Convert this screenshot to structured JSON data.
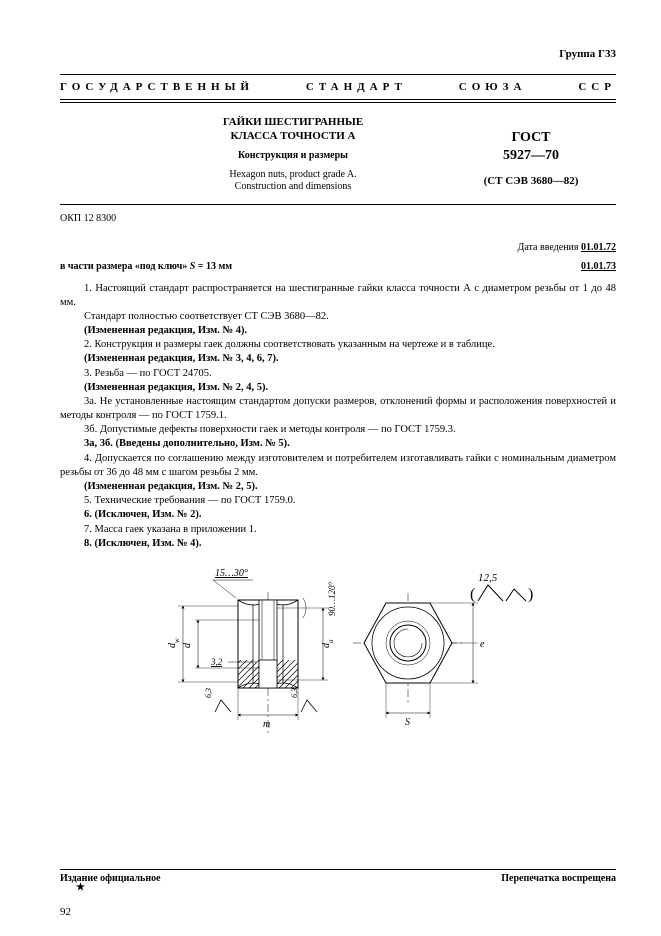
{
  "group": "Группа  Г33",
  "banner": {
    "w1": "ГОСУДАРСТВЕННЫЙ",
    "w2": "СТАНДАРТ",
    "w3": "СОЮЗА",
    "w4": "ССР"
  },
  "header": {
    "title1": "ГАЙКИ ШЕСТИГРАННЫЕ",
    "title2": "КЛАССА ТОЧНОСТИ А",
    "subtitle": "Конструкция и размеры",
    "eng1": "Hexagon nuts, product grade A.",
    "eng2": "Construction and dimensions",
    "gost1": "ГОСТ",
    "gost2": "5927—70",
    "stsev": "(СТ СЭВ 3680—82)"
  },
  "okp": "ОКП 12 8300",
  "intro_date_label": "Дата введения ",
  "intro_date": "01.01.72",
  "size_label_pre": "в части размера «под ключ» ",
  "size_var": "S",
  "size_label_post": " = 13 мм",
  "size_date": "01.01.73",
  "paragraphs": [
    {
      "text": "1. Настоящий стандарт распространяется на шестигранные гайки класса точности А с диаметром резьбы от 1 до 48 мм."
    },
    {
      "text": "Стандарт полностью соответствует СТ СЭВ 3680—82."
    },
    {
      "text": "(Измененная редакция, Изм. № 4).",
      "bold": true
    },
    {
      "text": "2. Конструкция и размеры гаек должны соответствовать указанным на чертеже и в таблице."
    },
    {
      "text": "(Измененная редакция, Изм. № 3, 4, 6, 7).",
      "bold": true
    },
    {
      "text": "3. Резьба — по ГОСТ 24705."
    },
    {
      "text": "(Измененная редакция, Изм. № 2, 4, 5).",
      "bold": true
    },
    {
      "text": "3а. Не установленные настоящим стандартом допуски размеров, отклонений формы и расположения поверхностей и методы контроля — по ГОСТ 1759.1."
    },
    {
      "text": "3б. Допустимые дефекты поверхности гаек и методы контроля — по ГОСТ 1759.3."
    },
    {
      "text": "3а, 3б. (Введены дополнительно, Изм. № 5).",
      "bold": true
    },
    {
      "text": "4. Допускается по соглашению между изготовителем и потребителем изготавливать гайки с номинальным диаметром резьбы от 36 до 48 мм с шагом резьбы 2 мм."
    },
    {
      "text": "(Измененная редакция, Изм. № 2, 5).",
      "bold": true
    },
    {
      "text": "5. Технические требования — по ГОСТ 1759.0."
    },
    {
      "text": "6. (Исключен, Изм. № 2).",
      "bold": true
    },
    {
      "text": "7. Масса гаек указана в приложении 1."
    },
    {
      "text": "8. (Исключен, Изм. № 4).",
      "bold": true
    }
  ],
  "figure": {
    "surface_symbol": "12,5",
    "chamfer_angle": "15…30°",
    "angle_range": "90…120°",
    "leader_dim": "3,2",
    "bottom_dim": "6,3",
    "bottom_dim2": "6,3",
    "label_dw": "d_w",
    "label_d": "d",
    "label_da": "d_a",
    "label_m": "m",
    "label_S": "S",
    "label_e": "e",
    "stroke": "#000000",
    "fill_hatch": "#000000",
    "bg": "#ffffff"
  },
  "footer": {
    "left": "Издание официальное",
    "star": "★",
    "right": "Перепечатка воспрещена"
  },
  "page_number": "92"
}
